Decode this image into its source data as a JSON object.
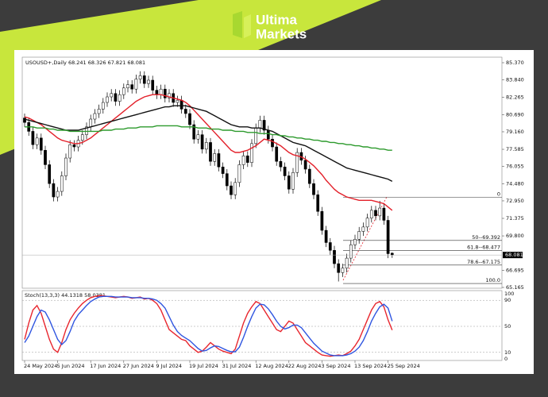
{
  "brand": [
    "Ultima",
    "Markets"
  ],
  "chart_data": {
    "type": "candlestick",
    "title": "USOUSD+,Daily",
    "categories": [
      "24 May 2024",
      null,
      null,
      null,
      null,
      null,
      null,
      null,
      "5 Jun 2024",
      null,
      null,
      null,
      null,
      null,
      null,
      null,
      "17 Jun 2024",
      null,
      null,
      null,
      null,
      null,
      null,
      null,
      "27 Jun 2024",
      null,
      null,
      null,
      null,
      null,
      null,
      null,
      "9 Jul 2024",
      null,
      null,
      null,
      null,
      null,
      null,
      null,
      "19 Jul 2024",
      null,
      null,
      null,
      null,
      null,
      null,
      null,
      "31 Jul 2024",
      null,
      null,
      null,
      null,
      null,
      null,
      null,
      "12 Aug 2024",
      null,
      null,
      null,
      null,
      null,
      null,
      null,
      "22 Aug 2024",
      null,
      null,
      null,
      null,
      null,
      null,
      null,
      "3 Sep 2024",
      null,
      null,
      null,
      null,
      null,
      null,
      null,
      "13 Sep 2024",
      null,
      null,
      null,
      null,
      null,
      null,
      null,
      "25 Sep 2024",
      null
    ],
    "open": [
      80.4,
      80.0,
      79.2,
      78.0,
      78.6,
      77.5,
      76.2,
      74.5,
      73.3,
      73.8,
      75.2,
      76.8,
      78.0,
      77.8,
      78.4,
      78.9,
      79.6,
      80.3,
      80.8,
      81.2,
      81.8,
      82.3,
      82.6,
      81.9,
      82.5,
      83.1,
      83.4,
      83.0,
      83.9,
      84.2,
      83.5,
      83.8,
      82.9,
      82.5,
      83.0,
      82.2,
      82.6,
      81.8,
      82.0,
      81.2,
      80.8,
      79.8,
      78.5,
      78.9,
      77.6,
      78.2,
      76.5,
      77.2,
      76.0,
      75.4,
      74.3,
      73.5,
      74.6,
      76.2,
      77.0,
      76.4,
      78.1,
      79.5,
      80.2,
      79.3,
      78.5,
      77.8,
      76.5,
      76.0,
      75.2,
      74.0,
      75.5,
      77.3,
      76.6,
      75.8,
      74.5,
      73.5,
      72.0,
      70.3,
      69.2,
      68.5,
      67.3,
      66.5,
      66.9,
      67.8,
      69.0,
      69.5,
      70.2,
      70.6,
      71.4,
      72.1,
      71.6,
      72.3,
      71.2,
      68.241
    ],
    "high": [
      80.8,
      80.4,
      79.6,
      79.0,
      79.0,
      77.9,
      76.6,
      74.9,
      74.2,
      75.6,
      77.2,
      78.4,
      78.4,
      78.8,
      79.3,
      80.0,
      80.7,
      81.2,
      81.6,
      82.2,
      82.7,
      83.0,
      83.0,
      82.9,
      83.5,
      83.8,
      83.8,
      84.3,
      84.6,
      84.6,
      84.2,
      84.2,
      83.3,
      83.4,
      83.4,
      83.0,
      83.0,
      82.4,
      82.4,
      81.6,
      81.2,
      80.2,
      79.3,
      79.3,
      78.6,
      78.6,
      77.6,
      77.6,
      76.4,
      75.8,
      74.7,
      75.0,
      76.6,
      77.4,
      77.4,
      78.5,
      79.9,
      80.6,
      80.6,
      79.7,
      78.9,
      78.2,
      76.9,
      76.4,
      75.6,
      75.9,
      77.7,
      77.7,
      77.0,
      76.2,
      74.9,
      73.9,
      72.4,
      70.7,
      69.6,
      68.9,
      67.7,
      67.3,
      68.2,
      69.4,
      69.9,
      70.6,
      71.0,
      71.8,
      72.5,
      72.5,
      72.95,
      72.7,
      71.6,
      68.326
    ],
    "low": [
      79.6,
      78.8,
      77.6,
      77.6,
      77.1,
      75.8,
      74.1,
      72.9,
      72.9,
      73.4,
      74.8,
      76.4,
      77.4,
      77.4,
      78.0,
      78.5,
      79.2,
      79.9,
      80.4,
      80.8,
      81.4,
      81.9,
      81.5,
      81.5,
      82.1,
      82.7,
      82.6,
      82.6,
      83.5,
      83.1,
      83.1,
      82.5,
      82.1,
      82.1,
      81.8,
      81.8,
      81.4,
      81.4,
      80.8,
      80.4,
      79.4,
      78.1,
      78.1,
      77.2,
      77.2,
      76.1,
      76.1,
      75.6,
      75.0,
      73.9,
      73.1,
      73.1,
      74.2,
      75.8,
      76.0,
      76.0,
      77.7,
      79.1,
      78.9,
      78.1,
      77.4,
      76.1,
      75.6,
      74.8,
      73.6,
      73.6,
      75.1,
      76.2,
      75.4,
      74.1,
      73.1,
      71.6,
      69.9,
      68.8,
      68.1,
      66.9,
      65.7,
      66.1,
      66.5,
      67.4,
      68.6,
      69.1,
      69.8,
      70.2,
      71.0,
      71.2,
      71.2,
      70.8,
      67.8,
      67.821
    ],
    "close": [
      80.0,
      79.2,
      78.0,
      78.6,
      77.5,
      76.2,
      74.5,
      73.3,
      73.8,
      75.2,
      76.8,
      78.0,
      77.8,
      78.4,
      78.9,
      79.6,
      80.3,
      80.8,
      81.2,
      81.8,
      82.3,
      82.6,
      81.9,
      82.5,
      83.1,
      83.4,
      83.0,
      83.9,
      84.2,
      83.5,
      83.8,
      82.9,
      82.5,
      83.0,
      82.2,
      82.6,
      81.8,
      82.0,
      81.2,
      80.8,
      79.8,
      78.5,
      78.9,
      77.6,
      78.2,
      76.5,
      77.2,
      76.0,
      75.4,
      74.3,
      73.5,
      74.6,
      76.2,
      77.0,
      76.4,
      78.1,
      79.5,
      80.2,
      79.3,
      78.5,
      77.8,
      76.5,
      76.0,
      75.2,
      74.0,
      75.5,
      77.3,
      76.6,
      75.8,
      74.5,
      73.5,
      72.0,
      70.3,
      69.2,
      68.5,
      67.3,
      66.5,
      66.9,
      67.8,
      69.0,
      69.5,
      70.2,
      70.6,
      71.4,
      72.1,
      71.6,
      72.3,
      71.2,
      68.2,
      68.081
    ],
    "series": [
      {
        "color": "#e3202a",
        "values": [
          80.5,
          80.4,
          80.2,
          80.0,
          79.8,
          79.5,
          79.2,
          78.9,
          78.6,
          78.4,
          78.3,
          78.2,
          78.1,
          78.1,
          78.2,
          78.4,
          78.6,
          78.9,
          79.2,
          79.5,
          79.8,
          80.1,
          80.4,
          80.7,
          81.0,
          81.3,
          81.6,
          81.9,
          82.1,
          82.3,
          82.4,
          82.5,
          82.5,
          82.5,
          82.4,
          82.3,
          82.2,
          82.1,
          82.0,
          81.8,
          81.5,
          81.1,
          80.7,
          80.3,
          79.9,
          79.5,
          79.1,
          78.7,
          78.3,
          77.9,
          77.5,
          77.3,
          77.3,
          77.4,
          77.5,
          77.7,
          77.9,
          78.2,
          78.5,
          78.4,
          78.3,
          78.1,
          77.9,
          77.6,
          77.3,
          77.1,
          77.0,
          76.9,
          76.7,
          76.4,
          76.1,
          75.7,
          75.3,
          74.8,
          74.4,
          74.0,
          73.7,
          73.5,
          73.3,
          73.2,
          73.1,
          73.0,
          73.0,
          73.0,
          73.0,
          72.9,
          72.8,
          72.7,
          72.4,
          72.1
        ]
      },
      {
        "color": "#111111",
        "values": [
          80.3,
          80.2,
          80.1,
          80.0,
          79.9,
          79.8,
          79.7,
          79.6,
          79.5,
          79.4,
          79.3,
          79.3,
          79.3,
          79.3,
          79.4,
          79.5,
          79.6,
          79.7,
          79.8,
          79.9,
          80.0,
          80.1,
          80.2,
          80.3,
          80.4,
          80.5,
          80.6,
          80.7,
          80.8,
          80.9,
          81.0,
          81.1,
          81.2,
          81.3,
          81.4,
          81.4,
          81.5,
          81.5,
          81.5,
          81.5,
          81.4,
          81.3,
          81.2,
          81.1,
          81.0,
          80.8,
          80.6,
          80.4,
          80.2,
          80.0,
          79.8,
          79.7,
          79.6,
          79.6,
          79.6,
          79.5,
          79.5,
          79.5,
          79.4,
          79.3,
          79.2,
          79.0,
          78.8,
          78.6,
          78.4,
          78.2,
          78.1,
          78.0,
          77.9,
          77.7,
          77.5,
          77.3,
          77.1,
          76.9,
          76.7,
          76.5,
          76.3,
          76.1,
          75.9,
          75.8,
          75.7,
          75.6,
          75.5,
          75.4,
          75.3,
          75.2,
          75.1,
          75.0,
          74.9,
          74.7
        ]
      },
      {
        "color": "#2c9a2c",
        "values": [
          79.6,
          79.6,
          79.6,
          79.5,
          79.5,
          79.5,
          79.4,
          79.4,
          79.3,
          79.3,
          79.3,
          79.2,
          79.2,
          79.2,
          79.2,
          79.2,
          79.2,
          79.2,
          79.2,
          79.3,
          79.3,
          79.3,
          79.4,
          79.4,
          79.4,
          79.5,
          79.5,
          79.5,
          79.6,
          79.6,
          79.6,
          79.6,
          79.7,
          79.7,
          79.7,
          79.7,
          79.7,
          79.7,
          79.6,
          79.6,
          79.6,
          79.6,
          79.5,
          79.5,
          79.5,
          79.4,
          79.4,
          79.4,
          79.3,
          79.3,
          79.3,
          79.2,
          79.2,
          79.2,
          79.1,
          79.1,
          79.1,
          79.0,
          79.0,
          79.0,
          78.9,
          78.9,
          78.8,
          78.8,
          78.7,
          78.7,
          78.6,
          78.6,
          78.5,
          78.5,
          78.4,
          78.4,
          78.3,
          78.3,
          78.2,
          78.2,
          78.1,
          78.1,
          78.0,
          78.0,
          77.9,
          77.9,
          77.8,
          77.8,
          77.7,
          77.7,
          77.6,
          77.6,
          77.5,
          77.5
        ]
      }
    ],
    "ylim": [
      65.165,
      85.37
    ],
    "yticks": [
      {
        "value": 85.37,
        "label": "85.370"
      },
      {
        "value": 83.84,
        "label": "83.840"
      },
      82.265,
      {
        "value": 80.69,
        "label": "80.690"
      },
      {
        "value": 79.16,
        "label": "79.160"
      },
      77.585,
      76.055,
      {
        "value": 74.48,
        "label": "74.480"
      },
      {
        "value": 72.95,
        "label": "72.950"
      },
      71.375,
      {
        "value": 69.8,
        "label": "69.800"
      },
      66.695,
      65.165
    ],
    "fib": [
      {
        "label": "0",
        "value": 73.269
      },
      {
        "label": "50--69.392",
        "value": 69.392
      },
      {
        "label": "61.8--68.477",
        "value": 68.477
      },
      {
        "label": "78.6--67.175",
        "value": 67.175
      },
      {
        "label": "100.0",
        "value": 65.515
      }
    ],
    "stoch": {
      "title": "Stoch(13,3,3)",
      "ylim": [
        0,
        100
      ],
      "yticks": [
        100,
        90,
        50,
        10,
        0
      ],
      "series": [
        {
          "color": "#e8262e",
          "values": [
            30,
            55,
            75,
            82,
            70,
            50,
            30,
            15,
            10,
            25,
            45,
            60,
            70,
            78,
            85,
            90,
            94,
            96,
            97,
            97,
            96,
            95,
            94,
            95,
            96,
            95,
            93,
            94,
            95,
            92,
            93,
            90,
            85,
            75,
            60,
            45,
            40,
            35,
            30,
            28,
            20,
            15,
            10,
            12,
            18,
            25,
            20,
            15,
            12,
            10,
            8,
            15,
            35,
            55,
            70,
            80,
            88,
            85,
            75,
            65,
            55,
            45,
            42,
            50,
            58,
            55,
            45,
            35,
            25,
            20,
            15,
            10,
            6,
            5,
            4,
            5,
            6,
            5,
            8,
            12,
            20,
            30,
            45,
            60,
            75,
            85,
            88,
            80,
            60,
            44.1318
          ]
        },
        {
          "color": "#2f55e0",
          "values": [
            25,
            35,
            50,
            65,
            75,
            72,
            60,
            45,
            30,
            22,
            28,
            42,
            58,
            68,
            75,
            82,
            88,
            92,
            95,
            96,
            96,
            96,
            95,
            95,
            95,
            95,
            94,
            94,
            94,
            93,
            93,
            92,
            90,
            85,
            78,
            65,
            52,
            42,
            36,
            32,
            28,
            22,
            16,
            12,
            13,
            17,
            20,
            19,
            16,
            13,
            11,
            11,
            18,
            33,
            50,
            65,
            78,
            84,
            83,
            77,
            68,
            58,
            50,
            46,
            48,
            52,
            52,
            48,
            40,
            32,
            24,
            18,
            12,
            9,
            6,
            5,
            5,
            5,
            6,
            8,
            12,
            18,
            28,
            42,
            58,
            70,
            80,
            84,
            78,
            58.0381
          ]
        }
      ]
    }
  }
}
